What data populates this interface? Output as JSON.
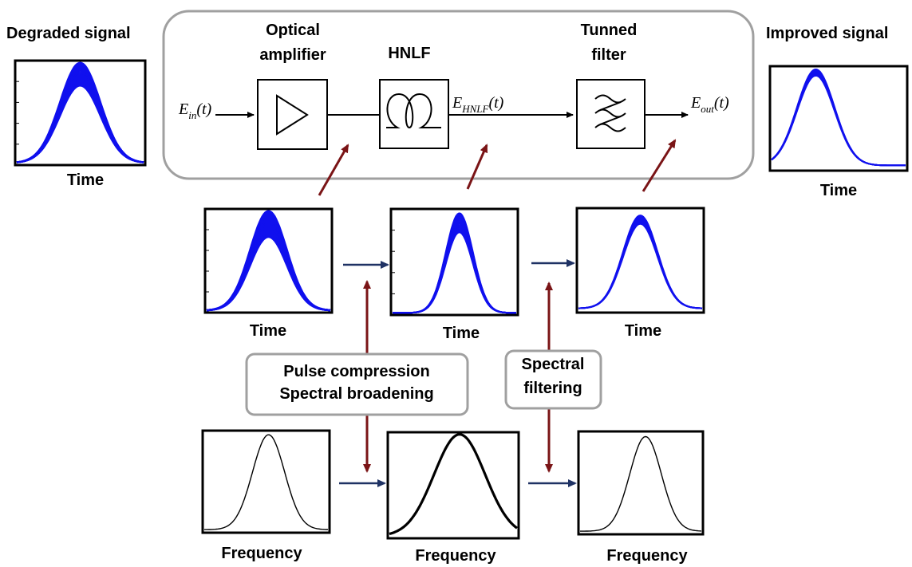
{
  "labels": {
    "degraded_signal": "Degraded signal",
    "improved_signal": "Improved signal",
    "optical_amplifier_line1": "Optical",
    "optical_amplifier_line2": "amplifier",
    "hnlf": "HNLF",
    "tuned_filter_line1": "Tunned",
    "tuned_filter_line2": "filter",
    "time": "Time",
    "frequency": "Frequency",
    "callout_compression_line1": "Pulse compression",
    "callout_compression_line2": "Spectral broadening",
    "callout_filtering_line1": "Spectral",
    "callout_filtering_line2": "filtering"
  },
  "signals": {
    "ein_main": "E",
    "ein_sub": "in",
    "ehnlf_main": "E",
    "ehnlf_sub": "HNLF",
    "eout_main": "E",
    "eout_sub": "out",
    "arg": "(t)"
  },
  "colors": {
    "pulse_blue": "#1010ee",
    "arrow_red": "#7a1416",
    "arrow_navy": "#1f3264",
    "frame": "#000000",
    "rounded_border": "#a0a0a0"
  },
  "icons": [
    "triangle-amplifier-icon",
    "fiber-coil-icon",
    "filter-wave-icon"
  ]
}
